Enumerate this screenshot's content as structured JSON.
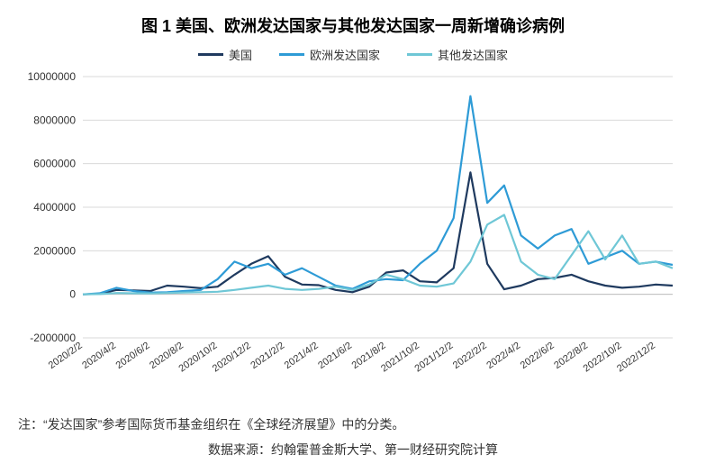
{
  "title": "图 1 美国、欧洲发达国家与其他发达国家一周新增确诊病例",
  "note": "注：“发达国家”参考国际货币基金组织在《全球经济展望》中的分类。",
  "source": "数据来源：约翰霍普金斯大学、第一财经研究院计算",
  "chart": {
    "type": "line",
    "background_color": "#ffffff",
    "grid_color": "#d9d9d9",
    "axis_color": "#bfbfbf",
    "title_fontsize": 18,
    "label_fontsize": 12,
    "line_width": 2.2,
    "ylim": [
      -2000000,
      10000000
    ],
    "ytick_step": 2000000,
    "yticks": [
      -2000000,
      0,
      2000000,
      4000000,
      6000000,
      8000000,
      10000000
    ],
    "xticks": [
      "2020/2/2",
      "2020/4/2",
      "2020/6/2",
      "2020/8/2",
      "2020/10/2",
      "2020/12/2",
      "2021/2/2",
      "2021/4/2",
      "2021/6/2",
      "2021/8/2",
      "2021/10/2",
      "2021/12/2",
      "2022/2/2",
      "2022/4/2",
      "2022/6/2",
      "2022/8/2",
      "2022/10/2",
      "2022/12/2"
    ],
    "categories": [
      "2020/2/2",
      "2020/3/2",
      "2020/4/2",
      "2020/5/2",
      "2020/6/2",
      "2020/7/2",
      "2020/8/2",
      "2020/9/2",
      "2020/10/2",
      "2020/11/2",
      "2020/12/2",
      "2021/1/2",
      "2021/2/2",
      "2021/3/2",
      "2021/4/2",
      "2021/5/2",
      "2021/6/2",
      "2021/7/2",
      "2021/8/2",
      "2021/9/2",
      "2021/10/2",
      "2021/11/2",
      "2021/12/2",
      "2022/1/2",
      "2022/2/2",
      "2022/3/2",
      "2022/4/2",
      "2022/5/2",
      "2022/6/2",
      "2022/7/2",
      "2022/8/2",
      "2022/9/2",
      "2022/10/2",
      "2022/11/2",
      "2022/12/2",
      "2023/1/2"
    ],
    "series": [
      {
        "name": "美国",
        "color": "#1f3a5f",
        "values": [
          0,
          20000,
          200000,
          180000,
          150000,
          400000,
          350000,
          280000,
          350000,
          900000,
          1400000,
          1750000,
          800000,
          450000,
          420000,
          200000,
          100000,
          350000,
          1000000,
          1100000,
          600000,
          550000,
          1200000,
          5600000,
          1400000,
          230000,
          400000,
          700000,
          750000,
          900000,
          600000,
          400000,
          300000,
          350000,
          450000,
          400000
        ]
      },
      {
        "name": "欧洲发达国家",
        "color": "#2e9bd6",
        "values": [
          0,
          50000,
          300000,
          150000,
          80000,
          100000,
          150000,
          200000,
          700000,
          1500000,
          1200000,
          1400000,
          900000,
          1200000,
          800000,
          400000,
          250000,
          600000,
          700000,
          650000,
          1400000,
          2000000,
          3500000,
          9100000,
          4200000,
          5000000,
          2700000,
          2100000,
          2700000,
          3000000,
          1400000,
          1700000,
          2000000,
          1400000,
          1500000,
          1350000
        ]
      },
      {
        "name": "其他发达国家",
        "color": "#6fc7d6",
        "values": [
          0,
          10000,
          60000,
          50000,
          40000,
          60000,
          80000,
          100000,
          120000,
          200000,
          300000,
          400000,
          250000,
          200000,
          250000,
          350000,
          200000,
          450000,
          900000,
          700000,
          400000,
          350000,
          500000,
          1500000,
          3200000,
          3650000,
          1500000,
          900000,
          700000,
          1800000,
          2900000,
          1600000,
          2700000,
          1400000,
          1500000,
          1200000
        ]
      }
    ],
    "legend_position": "top"
  }
}
